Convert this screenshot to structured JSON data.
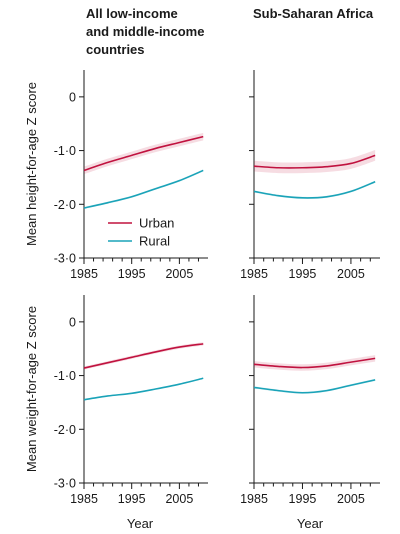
{
  "figure": {
    "column_titles": [
      [
        "All low-income",
        "and middle-income",
        "countries"
      ],
      [
        "Sub-Saharan Africa"
      ]
    ],
    "row_ylabels": [
      "Mean height-for-age Z score",
      "Mean weight-for-age Z score"
    ],
    "xlabel": "Year",
    "legend": [
      {
        "name": "Urban",
        "color": "#c0123f"
      },
      {
        "name": "Rural",
        "color": "#1aa3b8"
      }
    ]
  },
  "chart_data": [
    {
      "type": "line",
      "panel": "top-left",
      "xlim": [
        1985,
        2011
      ],
      "ylim": [
        -3,
        0.5
      ],
      "xticks": [
        1985,
        1995,
        2005
      ],
      "xtick_labels": [
        "1985",
        "1995",
        "2005"
      ],
      "yticks": [
        0,
        -1,
        -2,
        -3
      ],
      "ytick_labels": [
        "0",
        "-1·0",
        "-2·0",
        "-3·0"
      ],
      "show_legend": true,
      "legend_position": "lower-center",
      "series": [
        {
          "name": "Urban",
          "x": [
            1985,
            1990,
            1995,
            2000,
            2005,
            2010
          ],
          "y": [
            -1.37,
            -1.22,
            -1.09,
            -0.96,
            -0.85,
            -0.74
          ],
          "band": 0.07
        },
        {
          "name": "Rural",
          "x": [
            1985,
            1990,
            1995,
            2000,
            2005,
            2010
          ],
          "y": [
            -2.07,
            -1.97,
            -1.86,
            -1.71,
            -1.56,
            -1.37
          ],
          "band": 0.02
        }
      ]
    },
    {
      "type": "line",
      "panel": "top-right",
      "xlim": [
        1985,
        2011
      ],
      "ylim": [
        -3,
        0.5
      ],
      "xticks": [
        1985,
        1995,
        2005
      ],
      "xtick_labels": [
        "1985",
        "1995",
        "2005"
      ],
      "yticks": [
        0,
        -1,
        -2,
        -3
      ],
      "ytick_labels": [
        "",
        "",
        "",
        ""
      ],
      "series": [
        {
          "name": "Urban",
          "x": [
            1985,
            1990,
            1995,
            2000,
            2005,
            2010
          ],
          "y": [
            -1.29,
            -1.32,
            -1.32,
            -1.3,
            -1.24,
            -1.09
          ],
          "band": 0.1
        },
        {
          "name": "Rural",
          "x": [
            1985,
            1990,
            1995,
            2000,
            2005,
            2010
          ],
          "y": [
            -1.76,
            -1.84,
            -1.88,
            -1.86,
            -1.76,
            -1.58
          ],
          "band": 0.02
        }
      ]
    },
    {
      "type": "line",
      "panel": "bottom-left",
      "xlim": [
        1985,
        2011
      ],
      "ylim": [
        -3,
        0.5
      ],
      "xticks": [
        1985,
        1995,
        2005
      ],
      "xtick_labels": [
        "1985",
        "1995",
        "2005"
      ],
      "yticks": [
        0,
        -1,
        -2,
        -3
      ],
      "ytick_labels": [
        "0",
        "-1·0",
        "-2·0",
        "-3·0"
      ],
      "series": [
        {
          "name": "Urban",
          "x": [
            1985,
            1990,
            1995,
            2000,
            2005,
            2010
          ],
          "y": [
            -0.86,
            -0.76,
            -0.66,
            -0.56,
            -0.47,
            -0.41
          ],
          "band": 0.03
        },
        {
          "name": "Rural",
          "x": [
            1985,
            1990,
            1995,
            2000,
            2005,
            2010
          ],
          "y": [
            -1.45,
            -1.38,
            -1.33,
            -1.25,
            -1.16,
            -1.05
          ],
          "band": 0.01
        }
      ]
    },
    {
      "type": "line",
      "panel": "bottom-right",
      "xlim": [
        1985,
        2011
      ],
      "ylim": [
        -3,
        0.5
      ],
      "xticks": [
        1985,
        1995,
        2005
      ],
      "xtick_labels": [
        "1985",
        "1995",
        "2005"
      ],
      "yticks": [
        0,
        -1,
        -2,
        -3
      ],
      "ytick_labels": [
        "",
        "",
        "",
        ""
      ],
      "series": [
        {
          "name": "Urban",
          "x": [
            1985,
            1990,
            1995,
            2000,
            2005,
            2010
          ],
          "y": [
            -0.79,
            -0.83,
            -0.85,
            -0.82,
            -0.75,
            -0.68
          ],
          "band": 0.06
        },
        {
          "name": "Rural",
          "x": [
            1985,
            1990,
            1995,
            2000,
            2005,
            2010
          ],
          "y": [
            -1.22,
            -1.28,
            -1.32,
            -1.28,
            -1.18,
            -1.08
          ],
          "band": 0.02
        }
      ]
    }
  ]
}
